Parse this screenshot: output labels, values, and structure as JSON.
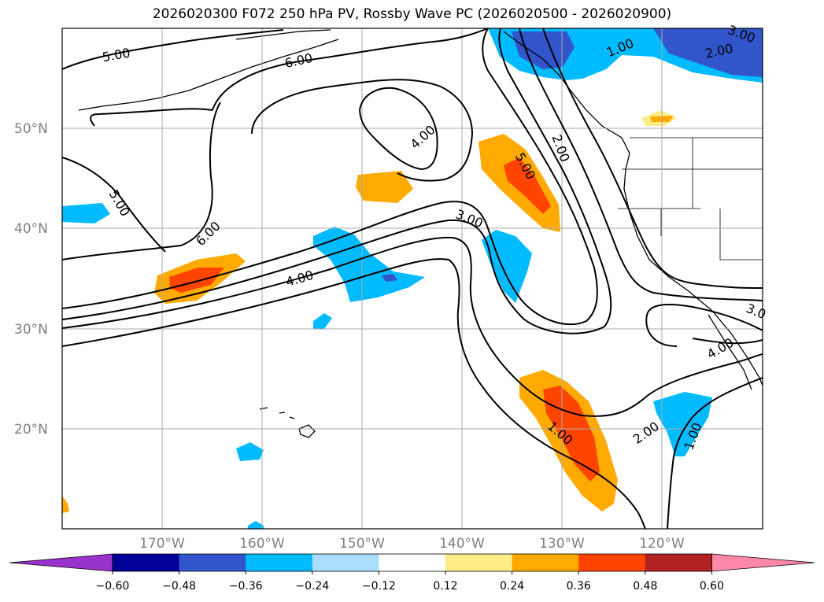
{
  "title": "2026020300 F072 250 hPa PV, Rossby Wave PC (2026020500 - 2026020900)",
  "map": {
    "lat_labels": [
      "20°N",
      "30°N",
      "40°N",
      "50°N"
    ],
    "lon_labels": [
      "170°W",
      "160°W",
      "150°W",
      "140°W",
      "130°W",
      "120°W"
    ],
    "contour_labels": [
      "5.00",
      "6.00",
      "5.00",
      "6.00",
      "4.00",
      "4.00",
      "3.00",
      "5.00",
      "2.00",
      "1.00",
      "2.00",
      "3.00",
      "1.00",
      "2.00",
      "1.00",
      "4.00",
      "3.0"
    ]
  },
  "colorbar": {
    "ticks": [
      "−0.60",
      "−0.48",
      "−0.36",
      "−0.24",
      "−0.12",
      "0.12",
      "0.24",
      "0.36",
      "0.48",
      "0.60"
    ],
    "colors": [
      "#9933cc",
      "#000099",
      "#3355cc",
      "#00bbff",
      "#aaddff",
      "#ffffff",
      "#ffee88",
      "#ffaa00",
      "#ff4400",
      "#b22222",
      "#ff88aa"
    ]
  }
}
